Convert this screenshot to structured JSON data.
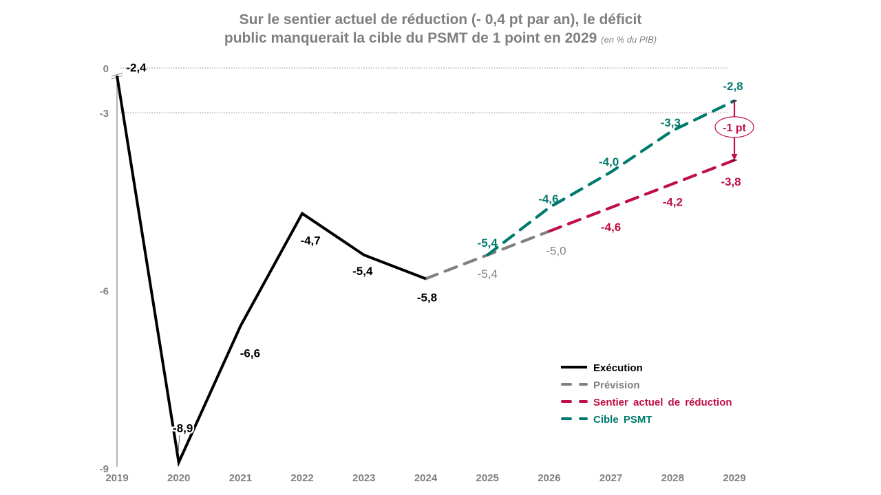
{
  "chart_data": {
    "type": "line",
    "title_line1": "Sur le sentier actuel de réduction (- 0,4 pt par an), le déficit",
    "title_line2": "public manquerait la cible du PSMT de 1 point en 2029",
    "title_unit": "(en % du PIB)",
    "xlabel": "",
    "ylabel": "",
    "categories": [
      "2019",
      "2020",
      "2021",
      "2022",
      "2023",
      "2024",
      "2025",
      "2026",
      "2027",
      "2028",
      "2029"
    ],
    "y_ticks": [
      {
        "value": 0,
        "label": "0"
      },
      {
        "value": -3,
        "label": "-3"
      },
      {
        "value": -6,
        "label": "-6"
      },
      {
        "value": -9,
        "label": "-9"
      }
    ],
    "ylim": [
      -9,
      0
    ],
    "axis_break": true,
    "gridlines": [
      0,
      -3
    ],
    "legend_position": "bottom-right",
    "series": [
      {
        "name": "Exécution",
        "color": "#000000",
        "style": "solid",
        "x": [
          "2019",
          "2020",
          "2021",
          "2022",
          "2023",
          "2024"
        ],
        "values": [
          -2.4,
          -8.9,
          -6.6,
          -4.7,
          -5.4,
          -5.8
        ],
        "labels": [
          "-2,4",
          "-8,9",
          "-6,6",
          "-4,7",
          "-5,4",
          "-5,8"
        ]
      },
      {
        "name": "Prévision",
        "color": "#808080",
        "style": "dashed",
        "x": [
          "2024",
          "2025",
          "2026"
        ],
        "values": [
          -5.8,
          -5.4,
          -5.0
        ],
        "labels": [
          null,
          "-5,4",
          "-5,0"
        ]
      },
      {
        "name": "Sentier actuel de réduction",
        "color": "#c00f45",
        "style": "dashed",
        "x": [
          "2026",
          "2027",
          "2028",
          "2029"
        ],
        "values": [
          -5.0,
          -4.6,
          -4.2,
          -3.8
        ],
        "labels": [
          null,
          "-4,6",
          "-4,2",
          "-3,8"
        ]
      },
      {
        "name": "Cible PSMT",
        "color": "#007a6e",
        "style": "dashed",
        "x": [
          "2025",
          "2026",
          "2027",
          "2028",
          "2029"
        ],
        "values": [
          -5.4,
          -4.6,
          -4.0,
          -3.3,
          -2.8
        ],
        "labels": [
          "-5,4",
          "-4,6",
          "-4,0",
          "-3,3",
          "-2,8"
        ]
      }
    ],
    "annotation": {
      "text": "-1 pt",
      "year": "2029",
      "from": -2.8,
      "to": -3.8,
      "color": "#c00f45"
    }
  }
}
